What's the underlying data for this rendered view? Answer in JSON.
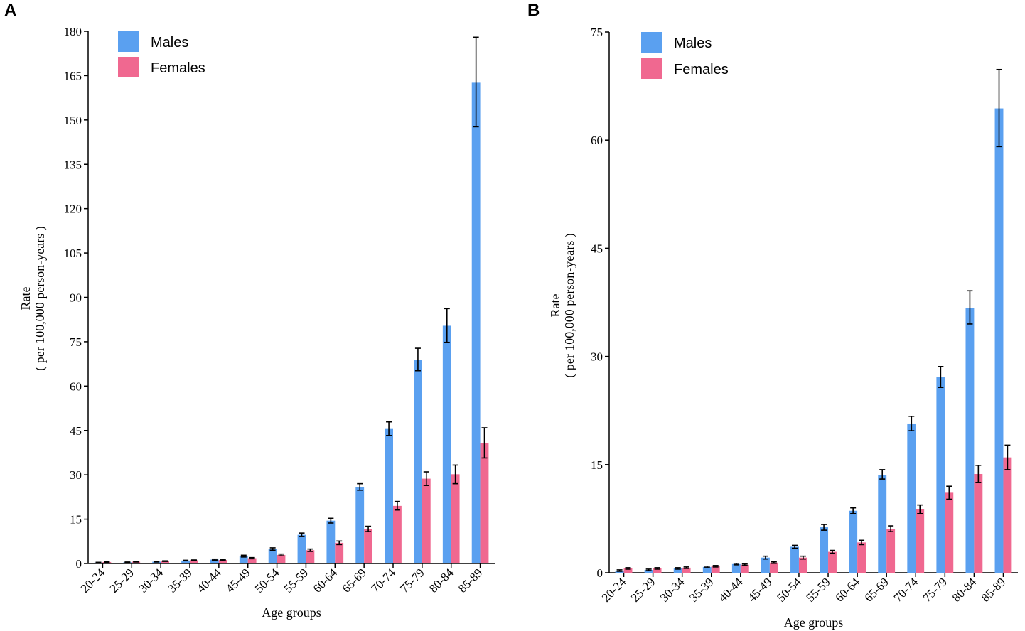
{
  "chart_data": [
    {
      "panel": "A",
      "type": "bar",
      "title": "",
      "xlabel": "Age groups",
      "ylabel": "Rate",
      "ylabel_sub": "( per 100,000 person-years )",
      "ylim": [
        0,
        180
      ],
      "yticks": [
        0,
        15,
        30,
        45,
        60,
        75,
        90,
        105,
        120,
        135,
        150,
        165,
        180
      ],
      "categories": [
        "20-24",
        "25-29",
        "30-34",
        "35-39",
        "40-44",
        "45-49",
        "50-54",
        "55-59",
        "60-64",
        "65-69",
        "70-74",
        "75-79",
        "80-84",
        "85-89"
      ],
      "series": [
        {
          "name": "Males",
          "color": "#5aa0f0",
          "values": [
            0.3,
            0.4,
            0.6,
            1.0,
            1.3,
            2.5,
            4.9,
            9.7,
            14.5,
            25.9,
            45.5,
            68.9,
            80.4,
            162.6
          ],
          "lower": [
            0.2,
            0.3,
            0.5,
            0.9,
            1.1,
            2.2,
            4.5,
            9.1,
            13.7,
            24.8,
            43.3,
            65.2,
            74.8,
            147.7
          ],
          "upper": [
            0.4,
            0.5,
            0.7,
            1.1,
            1.5,
            2.8,
            5.3,
            10.3,
            15.3,
            27.0,
            47.9,
            72.8,
            86.2,
            178.0
          ]
        },
        {
          "name": "Females",
          "color": "#f06890",
          "values": [
            0.5,
            0.6,
            0.8,
            1.1,
            1.2,
            1.8,
            2.9,
            4.5,
            7.0,
            11.7,
            19.5,
            28.7,
            30.2,
            40.7
          ],
          "lower": [
            0.4,
            0.5,
            0.7,
            1.0,
            1.0,
            1.6,
            2.6,
            4.1,
            6.4,
            10.8,
            18.1,
            26.4,
            27.0,
            35.7
          ],
          "upper": [
            0.6,
            0.7,
            0.9,
            1.2,
            1.4,
            2.0,
            3.2,
            4.9,
            7.6,
            12.6,
            21.0,
            31.0,
            33.3,
            45.9
          ]
        }
      ],
      "legend": "top-left"
    },
    {
      "panel": "B",
      "type": "bar",
      "title": "",
      "xlabel": "Age groups",
      "ylabel": "Rate",
      "ylabel_sub": "( per 100,000 person-years )",
      "ylim": [
        0,
        75
      ],
      "yticks": [
        0,
        15,
        30,
        45,
        60,
        75
      ],
      "categories": [
        "20-24",
        "25-29",
        "30-34",
        "35-39",
        "40-44",
        "45-49",
        "50-54",
        "55-59",
        "60-64",
        "65-69",
        "70-74",
        "75-79",
        "80-84",
        "85-89"
      ],
      "series": [
        {
          "name": "Males",
          "color": "#5aa0f0",
          "values": [
            0.3,
            0.4,
            0.6,
            0.8,
            1.2,
            2.1,
            3.6,
            6.3,
            8.6,
            13.6,
            20.7,
            27.1,
            36.7,
            64.4
          ],
          "lower": [
            0.2,
            0.3,
            0.5,
            0.7,
            1.1,
            1.9,
            3.4,
            5.9,
            8.2,
            13.0,
            19.7,
            25.7,
            34.5,
            59.1
          ],
          "upper": [
            0.4,
            0.5,
            0.7,
            0.9,
            1.3,
            2.3,
            3.8,
            6.7,
            9.0,
            14.3,
            21.7,
            28.6,
            39.1,
            69.8
          ]
        },
        {
          "name": "Females",
          "color": "#f06890",
          "values": [
            0.6,
            0.6,
            0.7,
            0.9,
            1.1,
            1.4,
            2.1,
            2.9,
            4.2,
            6.1,
            8.8,
            11.1,
            13.7,
            16.0
          ],
          "lower": [
            0.5,
            0.5,
            0.6,
            0.8,
            1.0,
            1.3,
            1.9,
            2.7,
            3.9,
            5.7,
            8.2,
            10.2,
            12.5,
            14.3
          ],
          "upper": [
            0.7,
            0.7,
            0.8,
            1.0,
            1.2,
            1.5,
            2.3,
            3.1,
            4.5,
            6.5,
            9.4,
            12.0,
            14.9,
            17.7
          ]
        }
      ],
      "legend": "top-left"
    }
  ]
}
